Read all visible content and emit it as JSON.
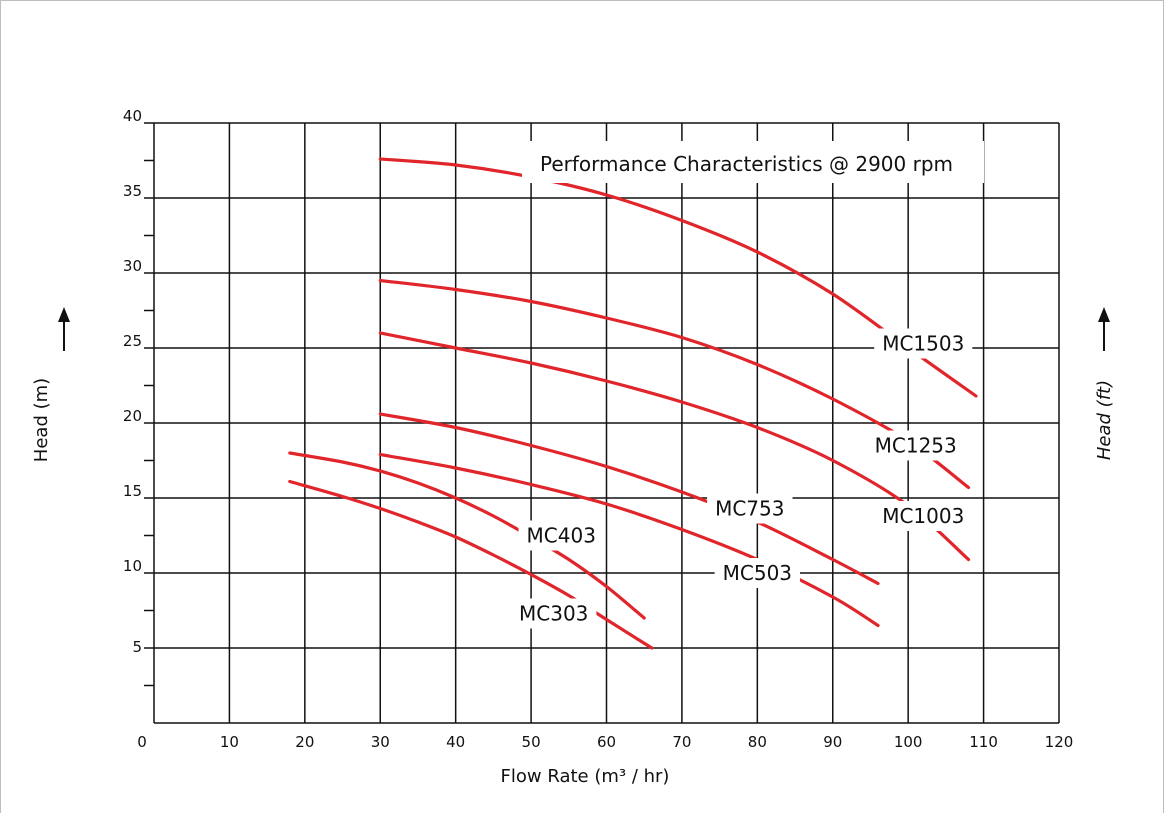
{
  "chart_data": {
    "type": "line",
    "title": "Performance Characteristics @ 2900 rpm",
    "xlabel": "Flow Rate (m³ / hr)",
    "ylabel": "Head (m)",
    "y2label": "Head (ft)",
    "xlim": [
      0,
      120
    ],
    "ylim": [
      0,
      40
    ],
    "xticks": [
      0,
      10,
      20,
      30,
      40,
      50,
      60,
      70,
      80,
      90,
      100,
      110,
      120
    ],
    "yticks": [
      5,
      10,
      15,
      20,
      25,
      30,
      35,
      40
    ],
    "grid": true,
    "line_color": "#e0252b",
    "series": [
      {
        "name": "MC303",
        "x": [
          18,
          25,
          30,
          35,
          40,
          45,
          50,
          55,
          60,
          66
        ],
        "y": [
          16.1,
          15.1,
          14.3,
          13.4,
          12.4,
          11.2,
          9.9,
          8.5,
          6.9,
          5.0
        ],
        "label_at": [
          53,
          7.3
        ]
      },
      {
        "name": "MC403",
        "x": [
          18,
          25,
          30,
          35,
          40,
          45,
          50,
          55,
          60,
          65
        ],
        "y": [
          18.0,
          17.4,
          16.8,
          16.0,
          15.0,
          13.8,
          12.4,
          10.9,
          9.1,
          7.0
        ],
        "label_at": [
          54,
          12.5
        ]
      },
      {
        "name": "MC503",
        "x": [
          30,
          40,
          50,
          60,
          70,
          80,
          90,
          96
        ],
        "y": [
          17.9,
          17.0,
          15.9,
          14.6,
          12.9,
          10.9,
          8.4,
          6.5
        ],
        "label_at": [
          80,
          10.0
        ]
      },
      {
        "name": "MC753",
        "x": [
          30,
          40,
          50,
          60,
          70,
          80,
          90,
          96
        ],
        "y": [
          20.6,
          19.7,
          18.5,
          17.1,
          15.4,
          13.4,
          10.9,
          9.3
        ],
        "label_at": [
          79,
          14.3
        ]
      },
      {
        "name": "MC1003",
        "x": [
          30,
          40,
          50,
          60,
          70,
          80,
          90,
          100,
          108
        ],
        "y": [
          26.0,
          25.0,
          24.0,
          22.8,
          21.4,
          19.7,
          17.5,
          14.5,
          10.9
        ],
        "label_at": [
          102,
          13.8
        ]
      },
      {
        "name": "MC1253",
        "x": [
          30,
          40,
          50,
          60,
          70,
          80,
          90,
          100,
          108
        ],
        "y": [
          29.5,
          28.9,
          28.1,
          27.0,
          25.7,
          23.9,
          21.6,
          18.8,
          15.7
        ],
        "label_at": [
          101,
          18.5
        ]
      },
      {
        "name": "MC1503",
        "x": [
          30,
          40,
          50,
          60,
          70,
          80,
          90,
          100,
          109
        ],
        "y": [
          37.6,
          37.2,
          36.4,
          35.2,
          33.5,
          31.4,
          28.6,
          25.0,
          21.8
        ],
        "label_at": [
          102,
          25.3
        ]
      }
    ]
  }
}
